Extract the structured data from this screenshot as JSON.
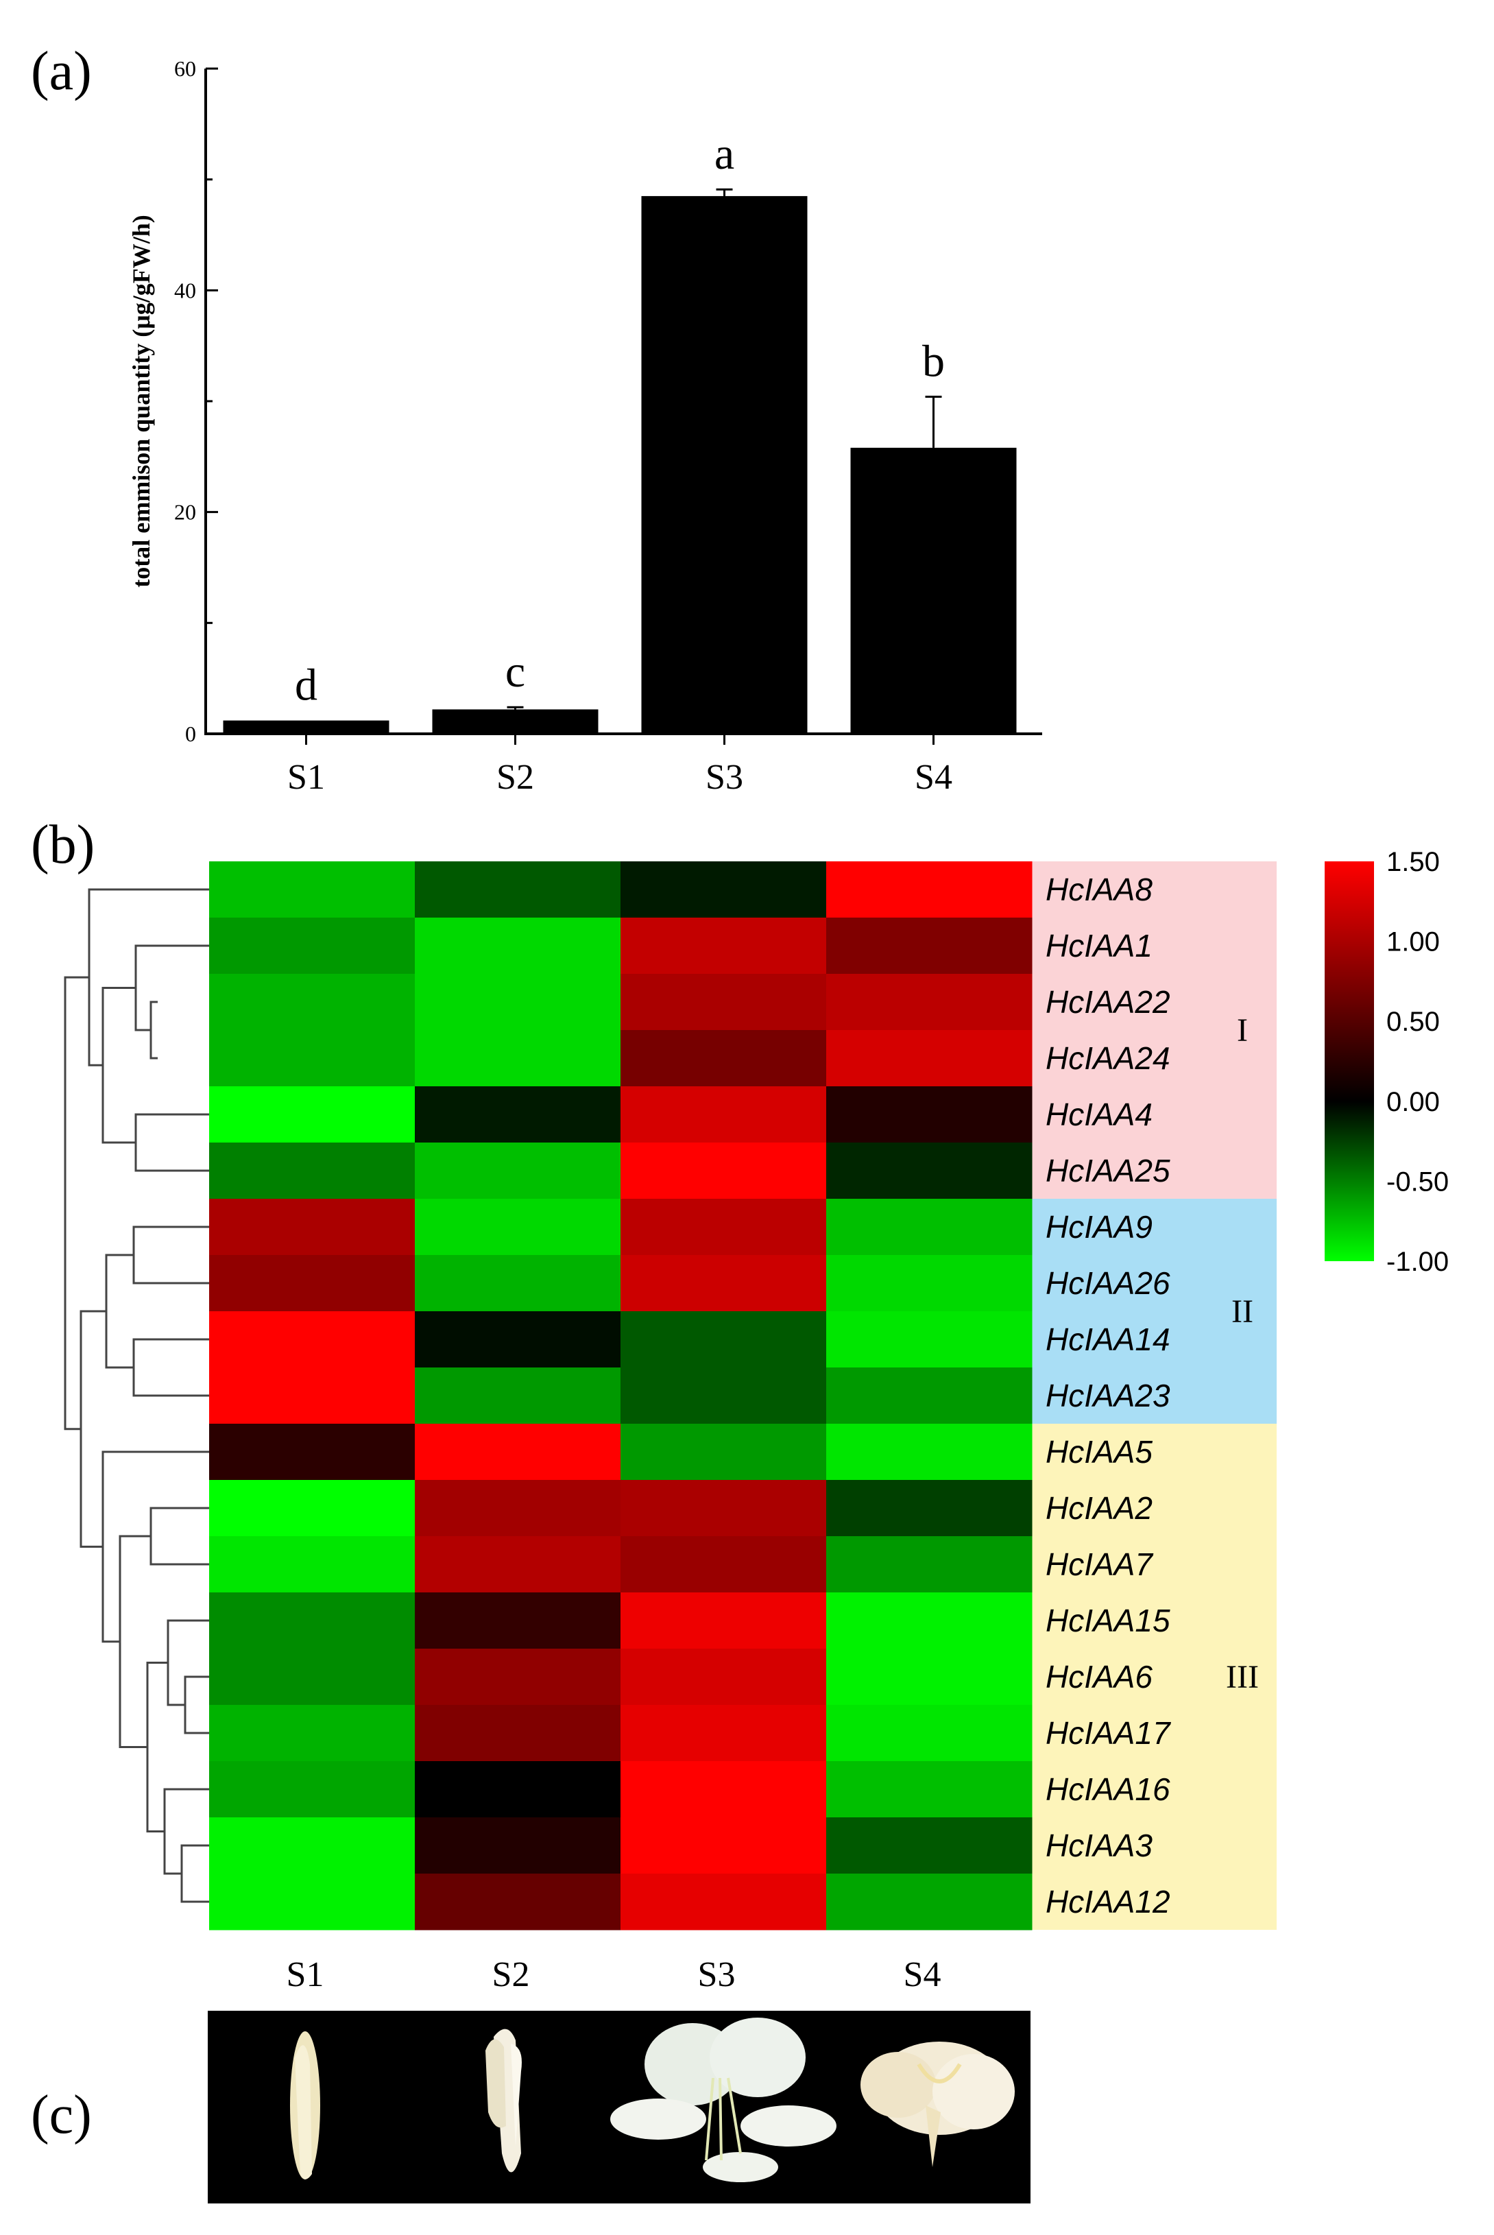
{
  "chart_data": [
    {
      "panel": "(a)",
      "type": "bar",
      "categories": [
        "S1",
        "S2",
        "S3",
        "S4"
      ],
      "values": [
        1.2,
        2.2,
        48.5,
        25.8
      ],
      "errors": [
        0,
        0.2,
        0.6,
        4.6
      ],
      "significance_letters": [
        "d",
        "c",
        "a",
        "b"
      ],
      "ylabel": "total emmison quantity (μg/gFW/h)",
      "xlabel": "",
      "ylim": [
        0,
        60
      ],
      "yticks": [
        0,
        20,
        40,
        60
      ],
      "grid": false
    },
    {
      "panel": "(b)",
      "type": "heatmap",
      "columns": [
        "S1",
        "S2",
        "S3",
        "S4"
      ],
      "rows": [
        "HcIAA8",
        "HcIAA1",
        "HcIAA22",
        "HcIAA24",
        "HcIAA4",
        "HcIAA25",
        "HcIAA9",
        "HcIAA26",
        "HcIAA14",
        "HcIAA23",
        "HcIAA5",
        "HcIAA2",
        "HcIAA7",
        "HcIAA15",
        "HcIAA6",
        "HcIAA17",
        "HcIAA16",
        "HcIAA3",
        "HcIAA12"
      ],
      "values": [
        [
          -0.75,
          -0.35,
          -0.1,
          1.5
        ],
        [
          -0.6,
          -0.85,
          1.15,
          0.75
        ],
        [
          -0.7,
          -0.85,
          1.0,
          1.1
        ],
        [
          -0.7,
          -0.85,
          0.7,
          1.25
        ],
        [
          -1.0,
          -0.1,
          1.25,
          0.2
        ],
        [
          -0.5,
          -0.75,
          1.5,
          -0.15
        ],
        [
          1.0,
          -0.85,
          1.1,
          -0.75
        ],
        [
          0.85,
          -0.7,
          1.2,
          -0.85
        ],
        [
          1.5,
          -0.05,
          -0.35,
          -0.9
        ],
        [
          1.5,
          -0.6,
          -0.35,
          -0.6
        ],
        [
          0.25,
          1.5,
          -0.6,
          -0.9
        ],
        [
          -1.0,
          0.95,
          1.0,
          -0.25
        ],
        [
          -0.9,
          1.05,
          0.9,
          -0.6
        ],
        [
          -0.55,
          0.3,
          1.4,
          -0.95
        ],
        [
          -0.55,
          0.85,
          1.25,
          -0.95
        ],
        [
          -0.7,
          0.75,
          1.35,
          -0.9
        ],
        [
          -0.65,
          0.0,
          1.5,
          -0.75
        ],
        [
          -0.95,
          0.2,
          1.5,
          -0.35
        ],
        [
          -0.95,
          0.6,
          1.35,
          -0.65
        ]
      ],
      "colorbar": {
        "min": -1.0,
        "max": 1.5,
        "tick_labels": [
          "1.50",
          "1.00",
          "0.50",
          "0.00",
          "-0.50",
          "-1.00"
        ],
        "low_color": "#00ff00",
        "mid_color": "#000000",
        "high_color": "#ff0000"
      },
      "groups": [
        {
          "label": "I",
          "color": "#fbd3d6"
        },
        {
          "label": "II",
          "color": "#a9def5"
        },
        {
          "label": "III",
          "color": "#fdf4ba"
        }
      ],
      "dendrogram": "hierarchical clustering of rows"
    }
  ],
  "panels": {
    "a_label": "(a)",
    "b_label": "(b)",
    "c_label": "(c)"
  },
  "photos": {
    "captions": [
      "S1",
      "S2",
      "S3",
      "S4"
    ]
  }
}
